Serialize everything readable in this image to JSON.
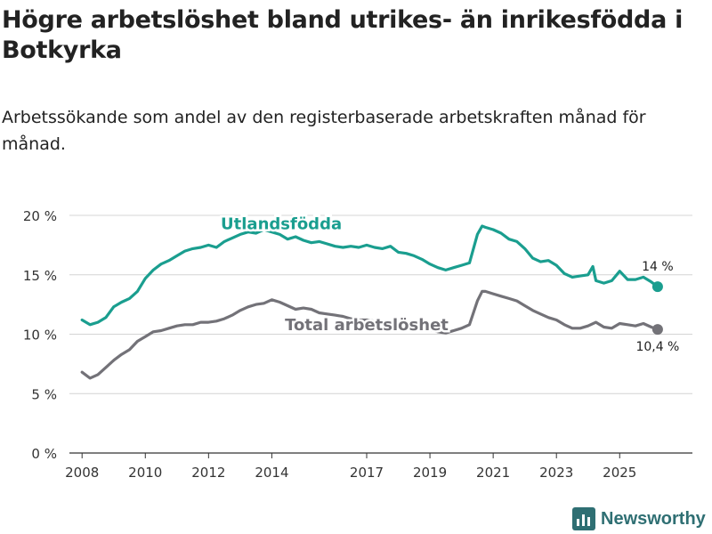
{
  "header": {
    "title": "Högre arbetslöshet bland utrikes- än inrikesfödda i Botkyrka",
    "subtitle": "Arbetssökande som andel av den registerbaserade arbetskraften månad för månad."
  },
  "brand": {
    "name": "Newsworthy",
    "icon": "bar-chart-logo-icon",
    "color": "#2f6f73"
  },
  "chart_data": {
    "type": "line",
    "title": "Högre arbetslöshet bland utrikes- än inrikesfödda i Botkyrka",
    "subtitle": "Arbetssökande som andel av den registerbaserade arbetskraften månad för månad.",
    "xlabel": "",
    "ylabel": "",
    "xlim": [
      2007.6,
      2027.3
    ],
    "ylim": [
      0,
      20
    ],
    "grid": "horizontal",
    "y_ticks": [
      {
        "value": 0,
        "label": "0 %"
      },
      {
        "value": 5,
        "label": "5 %"
      },
      {
        "value": 10,
        "label": "10 %"
      },
      {
        "value": 15,
        "label": "15 %"
      },
      {
        "value": 20,
        "label": "20 %"
      }
    ],
    "x_ticks": [
      {
        "value": 2008,
        "label": "2008"
      },
      {
        "value": 2010,
        "label": "2010"
      },
      {
        "value": 2012,
        "label": "2012"
      },
      {
        "value": 2014,
        "label": "2014"
      },
      {
        "value": 2017,
        "label": "2017"
      },
      {
        "value": 2019,
        "label": "2019"
      },
      {
        "value": 2021,
        "label": "2021"
      },
      {
        "value": 2023,
        "label": "2023"
      },
      {
        "value": 2025,
        "label": "2025"
      }
    ],
    "series": [
      {
        "name": "Utlandsfödda",
        "color": "#1a9e8f",
        "label_anchor": {
          "x": 2014.3,
          "y": 19.3
        },
        "end_label": "14 %",
        "points": [
          [
            2008.0,
            11.2
          ],
          [
            2008.25,
            10.8
          ],
          [
            2008.5,
            11.0
          ],
          [
            2008.75,
            11.4
          ],
          [
            2009.0,
            12.3
          ],
          [
            2009.25,
            12.7
          ],
          [
            2009.5,
            13.0
          ],
          [
            2009.75,
            13.6
          ],
          [
            2010.0,
            14.7
          ],
          [
            2010.25,
            15.4
          ],
          [
            2010.5,
            15.9
          ],
          [
            2010.75,
            16.2
          ],
          [
            2011.0,
            16.6
          ],
          [
            2011.25,
            17.0
          ],
          [
            2011.5,
            17.2
          ],
          [
            2011.75,
            17.3
          ],
          [
            2012.0,
            17.5
          ],
          [
            2012.25,
            17.3
          ],
          [
            2012.5,
            17.8
          ],
          [
            2012.75,
            18.1
          ],
          [
            2013.0,
            18.4
          ],
          [
            2013.25,
            18.6
          ],
          [
            2013.5,
            18.5
          ],
          [
            2013.75,
            18.8
          ],
          [
            2014.0,
            18.6
          ],
          [
            2014.25,
            18.4
          ],
          [
            2014.5,
            18.0
          ],
          [
            2014.75,
            18.2
          ],
          [
            2015.0,
            17.9
          ],
          [
            2015.25,
            17.7
          ],
          [
            2015.5,
            17.8
          ],
          [
            2015.75,
            17.6
          ],
          [
            2016.0,
            17.4
          ],
          [
            2016.25,
            17.3
          ],
          [
            2016.5,
            17.4
          ],
          [
            2016.75,
            17.3
          ],
          [
            2017.0,
            17.5
          ],
          [
            2017.25,
            17.3
          ],
          [
            2017.5,
            17.2
          ],
          [
            2017.75,
            17.4
          ],
          [
            2018.0,
            16.9
          ],
          [
            2018.25,
            16.8
          ],
          [
            2018.5,
            16.6
          ],
          [
            2018.75,
            16.3
          ],
          [
            2019.0,
            15.9
          ],
          [
            2019.25,
            15.6
          ],
          [
            2019.5,
            15.4
          ],
          [
            2019.75,
            15.6
          ],
          [
            2020.0,
            15.8
          ],
          [
            2020.25,
            16.0
          ],
          [
            2020.5,
            18.4
          ],
          [
            2020.65,
            19.1
          ],
          [
            2020.75,
            19.0
          ],
          [
            2021.0,
            18.8
          ],
          [
            2021.25,
            18.5
          ],
          [
            2021.5,
            18.0
          ],
          [
            2021.75,
            17.8
          ],
          [
            2022.0,
            17.2
          ],
          [
            2022.25,
            16.4
          ],
          [
            2022.5,
            16.1
          ],
          [
            2022.75,
            16.2
          ],
          [
            2023.0,
            15.8
          ],
          [
            2023.25,
            15.1
          ],
          [
            2023.5,
            14.8
          ],
          [
            2023.75,
            14.9
          ],
          [
            2024.0,
            15.0
          ],
          [
            2024.15,
            15.7
          ],
          [
            2024.25,
            14.5
          ],
          [
            2024.5,
            14.3
          ],
          [
            2024.75,
            14.5
          ],
          [
            2025.0,
            15.3
          ],
          [
            2025.25,
            14.6
          ],
          [
            2025.5,
            14.6
          ],
          [
            2025.75,
            14.8
          ],
          [
            2026.0,
            14.4
          ],
          [
            2026.2,
            14.0
          ]
        ]
      },
      {
        "name": "Total arbetslöshet",
        "color": "#737278",
        "label_anchor": {
          "x": 2017.0,
          "y": 10.8
        },
        "end_label": "10,4 %",
        "points": [
          [
            2008.0,
            6.8
          ],
          [
            2008.25,
            6.3
          ],
          [
            2008.5,
            6.6
          ],
          [
            2008.75,
            7.2
          ],
          [
            2009.0,
            7.8
          ],
          [
            2009.25,
            8.3
          ],
          [
            2009.5,
            8.7
          ],
          [
            2009.75,
            9.4
          ],
          [
            2010.0,
            9.8
          ],
          [
            2010.25,
            10.2
          ],
          [
            2010.5,
            10.3
          ],
          [
            2010.75,
            10.5
          ],
          [
            2011.0,
            10.7
          ],
          [
            2011.25,
            10.8
          ],
          [
            2011.5,
            10.8
          ],
          [
            2011.75,
            11.0
          ],
          [
            2012.0,
            11.0
          ],
          [
            2012.25,
            11.1
          ],
          [
            2012.5,
            11.3
          ],
          [
            2012.75,
            11.6
          ],
          [
            2013.0,
            12.0
          ],
          [
            2013.25,
            12.3
          ],
          [
            2013.5,
            12.5
          ],
          [
            2013.75,
            12.6
          ],
          [
            2014.0,
            12.9
          ],
          [
            2014.25,
            12.7
          ],
          [
            2014.5,
            12.4
          ],
          [
            2014.75,
            12.1
          ],
          [
            2015.0,
            12.2
          ],
          [
            2015.25,
            12.1
          ],
          [
            2015.5,
            11.8
          ],
          [
            2015.75,
            11.7
          ],
          [
            2016.0,
            11.6
          ],
          [
            2016.25,
            11.5
          ],
          [
            2016.5,
            11.3
          ],
          [
            2016.75,
            11.2
          ],
          [
            2017.0,
            11.2
          ],
          [
            2017.25,
            11.1
          ],
          [
            2017.5,
            11.0
          ],
          [
            2017.75,
            11.1
          ],
          [
            2018.0,
            10.9
          ],
          [
            2018.25,
            10.8
          ],
          [
            2018.5,
            10.6
          ],
          [
            2018.75,
            10.5
          ],
          [
            2019.0,
            10.4
          ],
          [
            2019.25,
            10.2
          ],
          [
            2019.5,
            10.1
          ],
          [
            2019.75,
            10.3
          ],
          [
            2020.0,
            10.5
          ],
          [
            2020.25,
            10.8
          ],
          [
            2020.5,
            12.8
          ],
          [
            2020.65,
            13.6
          ],
          [
            2020.75,
            13.6
          ],
          [
            2021.0,
            13.4
          ],
          [
            2021.25,
            13.2
          ],
          [
            2021.5,
            13.0
          ],
          [
            2021.75,
            12.8
          ],
          [
            2022.0,
            12.4
          ],
          [
            2022.25,
            12.0
          ],
          [
            2022.5,
            11.7
          ],
          [
            2022.75,
            11.4
          ],
          [
            2023.0,
            11.2
          ],
          [
            2023.25,
            10.8
          ],
          [
            2023.5,
            10.5
          ],
          [
            2023.75,
            10.5
          ],
          [
            2024.0,
            10.7
          ],
          [
            2024.25,
            11.0
          ],
          [
            2024.5,
            10.6
          ],
          [
            2024.75,
            10.5
          ],
          [
            2025.0,
            10.9
          ],
          [
            2025.25,
            10.8
          ],
          [
            2025.5,
            10.7
          ],
          [
            2025.75,
            10.9
          ],
          [
            2026.0,
            10.6
          ],
          [
            2026.2,
            10.4
          ]
        ]
      }
    ]
  }
}
